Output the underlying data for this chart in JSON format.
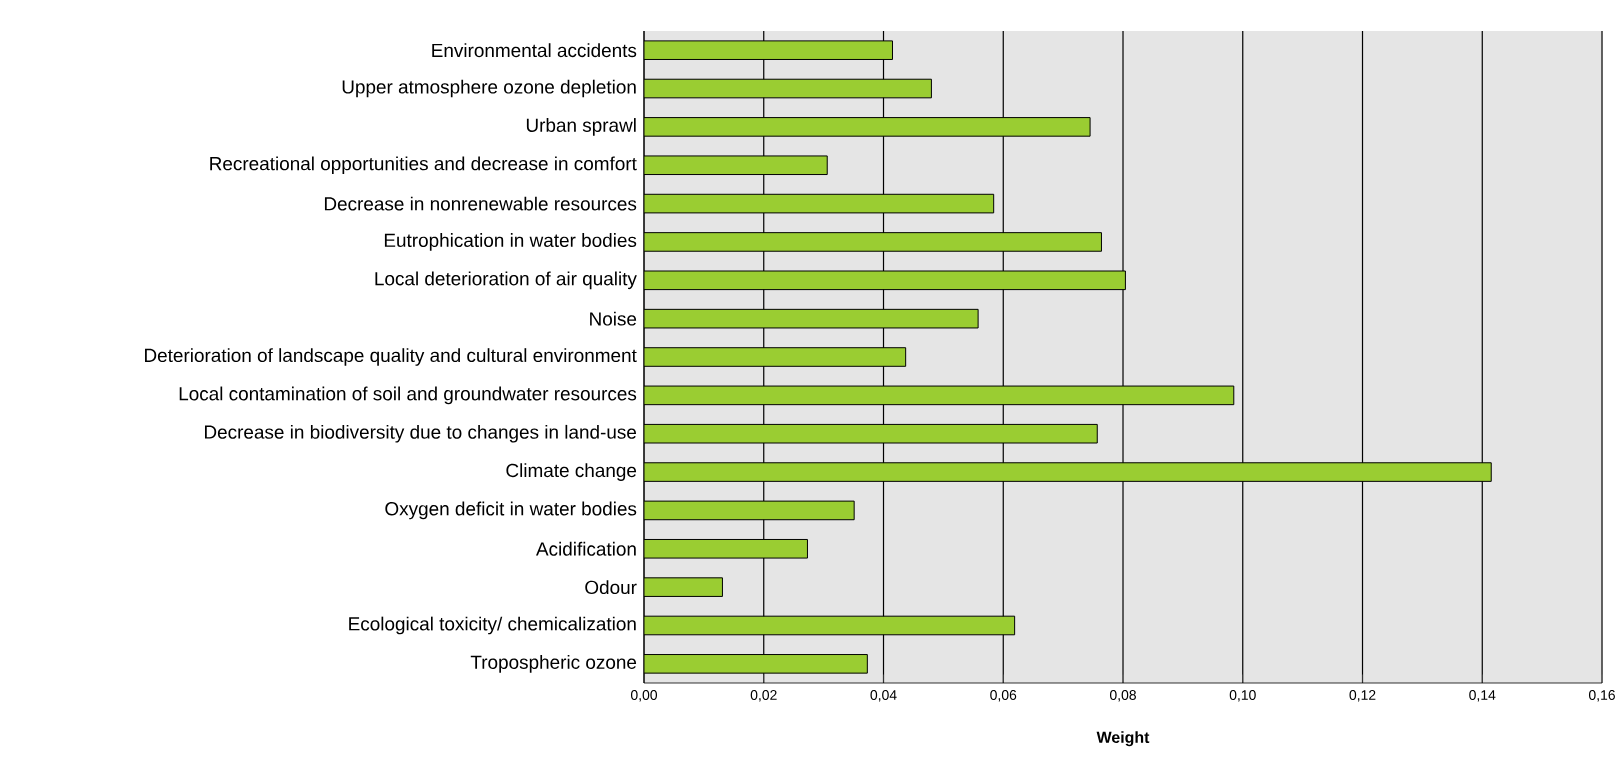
{
  "chart_data": {
    "type": "bar",
    "orientation": "horizontal",
    "xlabel": "Weight",
    "categories": [
      "Environmental accidents",
      "Upper atmosphere ozone depletion",
      "Urban sprawl",
      "Recreational opportunities and decrease in comfort",
      "Decrease in nonrenewable resources",
      "Eutrophication in water bodies",
      "Local deterioration of air quality",
      "Noise",
      "Deterioration of landscape quality and cultural environment",
      "Local contamination of soil and groundwater resources",
      "Decrease in biodiversity due to changes in land-use",
      "Climate change",
      "Oxygen deficit in water bodies",
      "Acidification",
      "Odour",
      "Ecological toxicity/ chemicalization",
      "Tropospheric ozone"
    ],
    "values": [
      0.0415,
      0.048,
      0.0745,
      0.0306,
      0.0584,
      0.0764,
      0.0804,
      0.0558,
      0.0437,
      0.0985,
      0.0757,
      0.1415,
      0.0351,
      0.0273,
      0.0131,
      0.0619,
      0.0373
    ],
    "color": "#9acd32",
    "xlim": [
      0,
      0.16
    ],
    "xticks": [
      {
        "value": 0,
        "label": "0,00"
      },
      {
        "value": 0.02,
        "label": "0,02"
      },
      {
        "value": 0.04,
        "label": "0,04"
      },
      {
        "value": 0.06,
        "label": "0,06"
      },
      {
        "value": 0.08,
        "label": "0,08"
      },
      {
        "value": 0.1,
        "label": "0,10"
      },
      {
        "value": 0.12,
        "label": "0,12"
      },
      {
        "value": 0.14,
        "label": "0,14"
      },
      {
        "value": 0.16,
        "label": "0,16"
      }
    ],
    "grid": "x"
  }
}
